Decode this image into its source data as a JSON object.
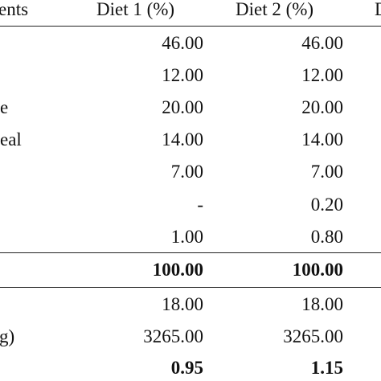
{
  "table": {
    "header": {
      "ingredients": "ents",
      "diet1": "Diet 1 (%)",
      "diet2": "Diet 2 (%)",
      "diet3_fragment": "D"
    },
    "rows": [
      {
        "label": "",
        "diet1": "46.00",
        "diet2": "46.00"
      },
      {
        "label": "",
        "diet1": "12.00",
        "diet2": "12.00"
      },
      {
        "label": "e",
        "diet1": "20.00",
        "diet2": "20.00"
      },
      {
        "label": "eal",
        "diet1": "14.00",
        "diet2": "14.00"
      },
      {
        "label": "",
        "diet1": "7.00",
        "diet2": "7.00"
      },
      {
        "label": "",
        "diet1": "-",
        "diet2": "0.20"
      },
      {
        "label": "",
        "diet1": "1.00",
        "diet2": "0.80"
      }
    ],
    "total": {
      "label": "",
      "diet1": "100.00",
      "diet2": "100.00"
    },
    "nutrients": [
      {
        "label": "",
        "diet1": "18.00",
        "diet2": "18.00",
        "bold": false
      },
      {
        "label": "g)",
        "diet1": "3265.00",
        "diet2": "3265.00",
        "bold": false
      },
      {
        "label": "",
        "diet1": "0.95",
        "diet2": "1.15",
        "bold": true
      }
    ]
  }
}
